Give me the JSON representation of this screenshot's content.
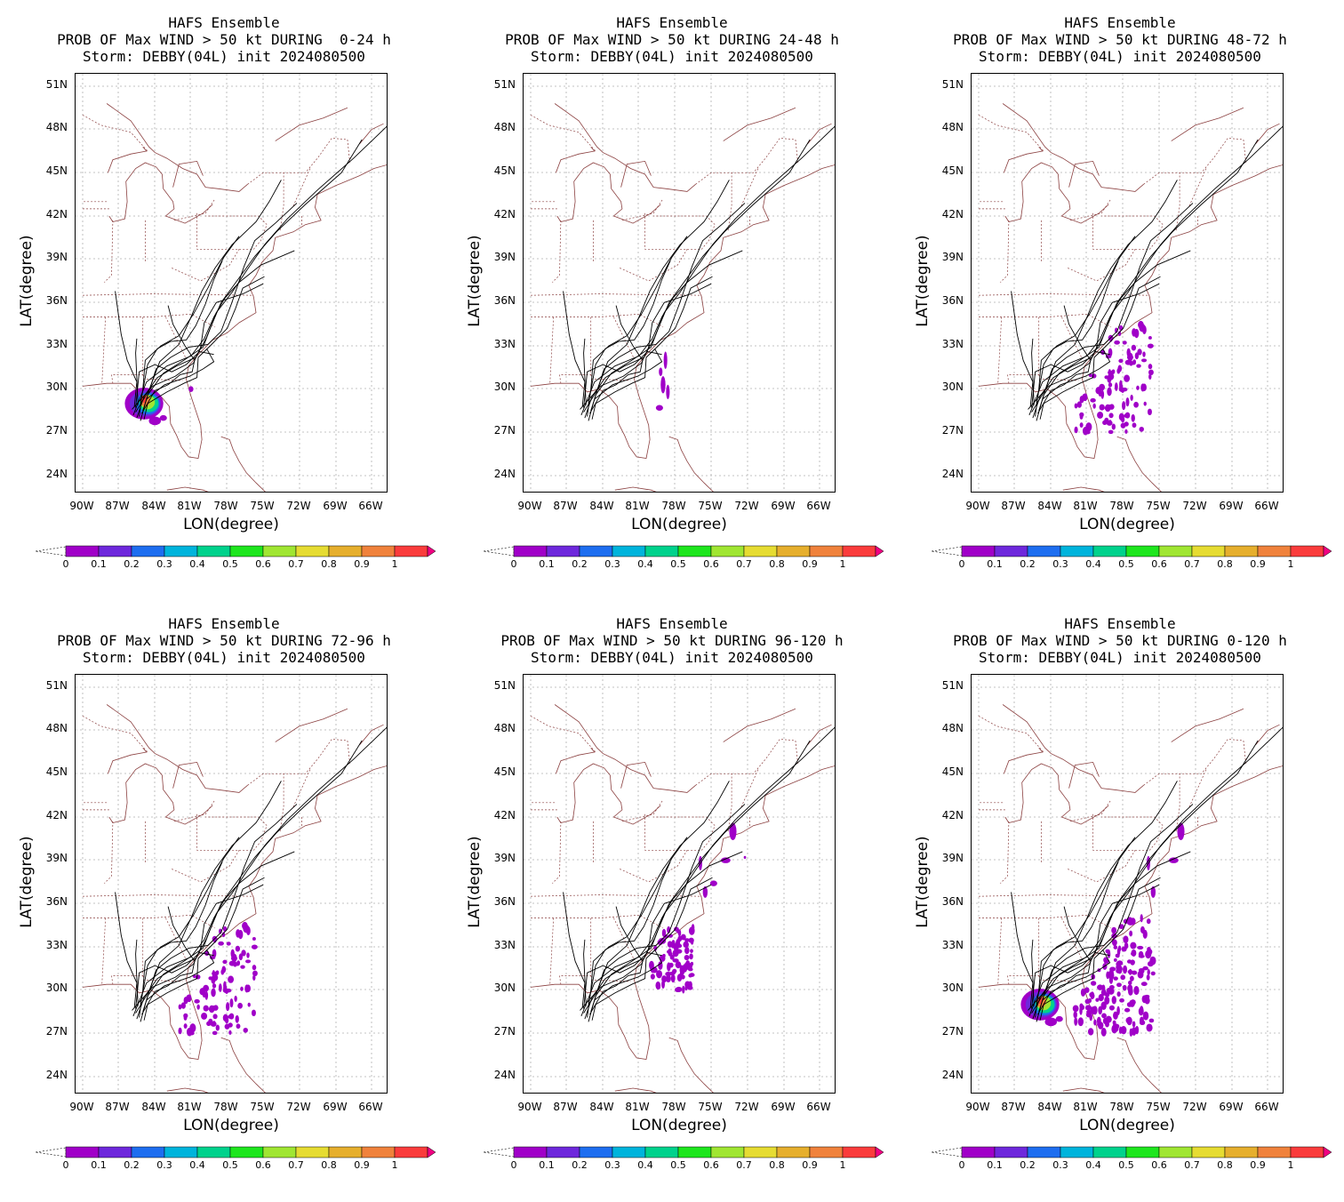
{
  "colorbar": {
    "labels": [
      "0",
      "0.1",
      "0.2",
      "0.3",
      "0.4",
      "0.5",
      "0.6",
      "0.7",
      "0.8",
      "0.9",
      "1"
    ],
    "colors": [
      "#a000c8",
      "#6e28dc",
      "#1e6ef0",
      "#00b4dc",
      "#00d28c",
      "#1ee61e",
      "#a0e632",
      "#e6dc32",
      "#e6af2d",
      "#f0823c",
      "#fa3c3c",
      "#f00082"
    ]
  },
  "axes": {
    "xlabel": "LON(degree)",
    "ylabel": "LAT(degree)",
    "xticks": [
      "90W",
      "87W",
      "84W",
      "81W",
      "78W",
      "75W",
      "72W",
      "69W",
      "66W"
    ],
    "yticks": [
      "51N",
      "48N",
      "45N",
      "42N",
      "39N",
      "36N",
      "33N",
      "30N",
      "27N",
      "24N"
    ]
  },
  "panels": [
    {
      "title1": "HAFS Ensemble",
      "title2": "PROB OF Max WIND > 50 kt DURING  0-24 h",
      "title3": "Storm: DEBBY(04L) init 2024080500",
      "prob_shading": "landfall-core"
    },
    {
      "title1": "HAFS Ensemble",
      "title2": "PROB OF Max WIND > 50 kt DURING 24-48 h",
      "title3": "Storm: DEBBY(04L) init 2024080500",
      "prob_shading": "scattered-offshore-low"
    },
    {
      "title1": "HAFS Ensemble",
      "title2": "PROB OF Max WIND > 50 kt DURING 48-72 h",
      "title3": "Storm: DEBBY(04L) init 2024080500",
      "prob_shading": "offshore-cluster-low"
    },
    {
      "title1": "HAFS Ensemble",
      "title2": "PROB OF Max WIND > 50 kt DURING 72-96 h",
      "title3": "Storm: DEBBY(04L) init 2024080500",
      "prob_shading": "offshore-cluster-low"
    },
    {
      "title1": "HAFS Ensemble",
      "title2": "PROB OF Max WIND > 50 kt DURING 96-120 h",
      "title3": "Storm: DEBBY(04L) init 2024080500",
      "prob_shading": "coastal-streaks-low"
    },
    {
      "title1": "HAFS Ensemble",
      "title2": "PROB OF Max WIND > 50 kt DURING 0-120 h",
      "title3": "Storm: DEBBY(04L) init 2024080500",
      "prob_shading": "landfall-core-plus-offshore"
    }
  ]
}
